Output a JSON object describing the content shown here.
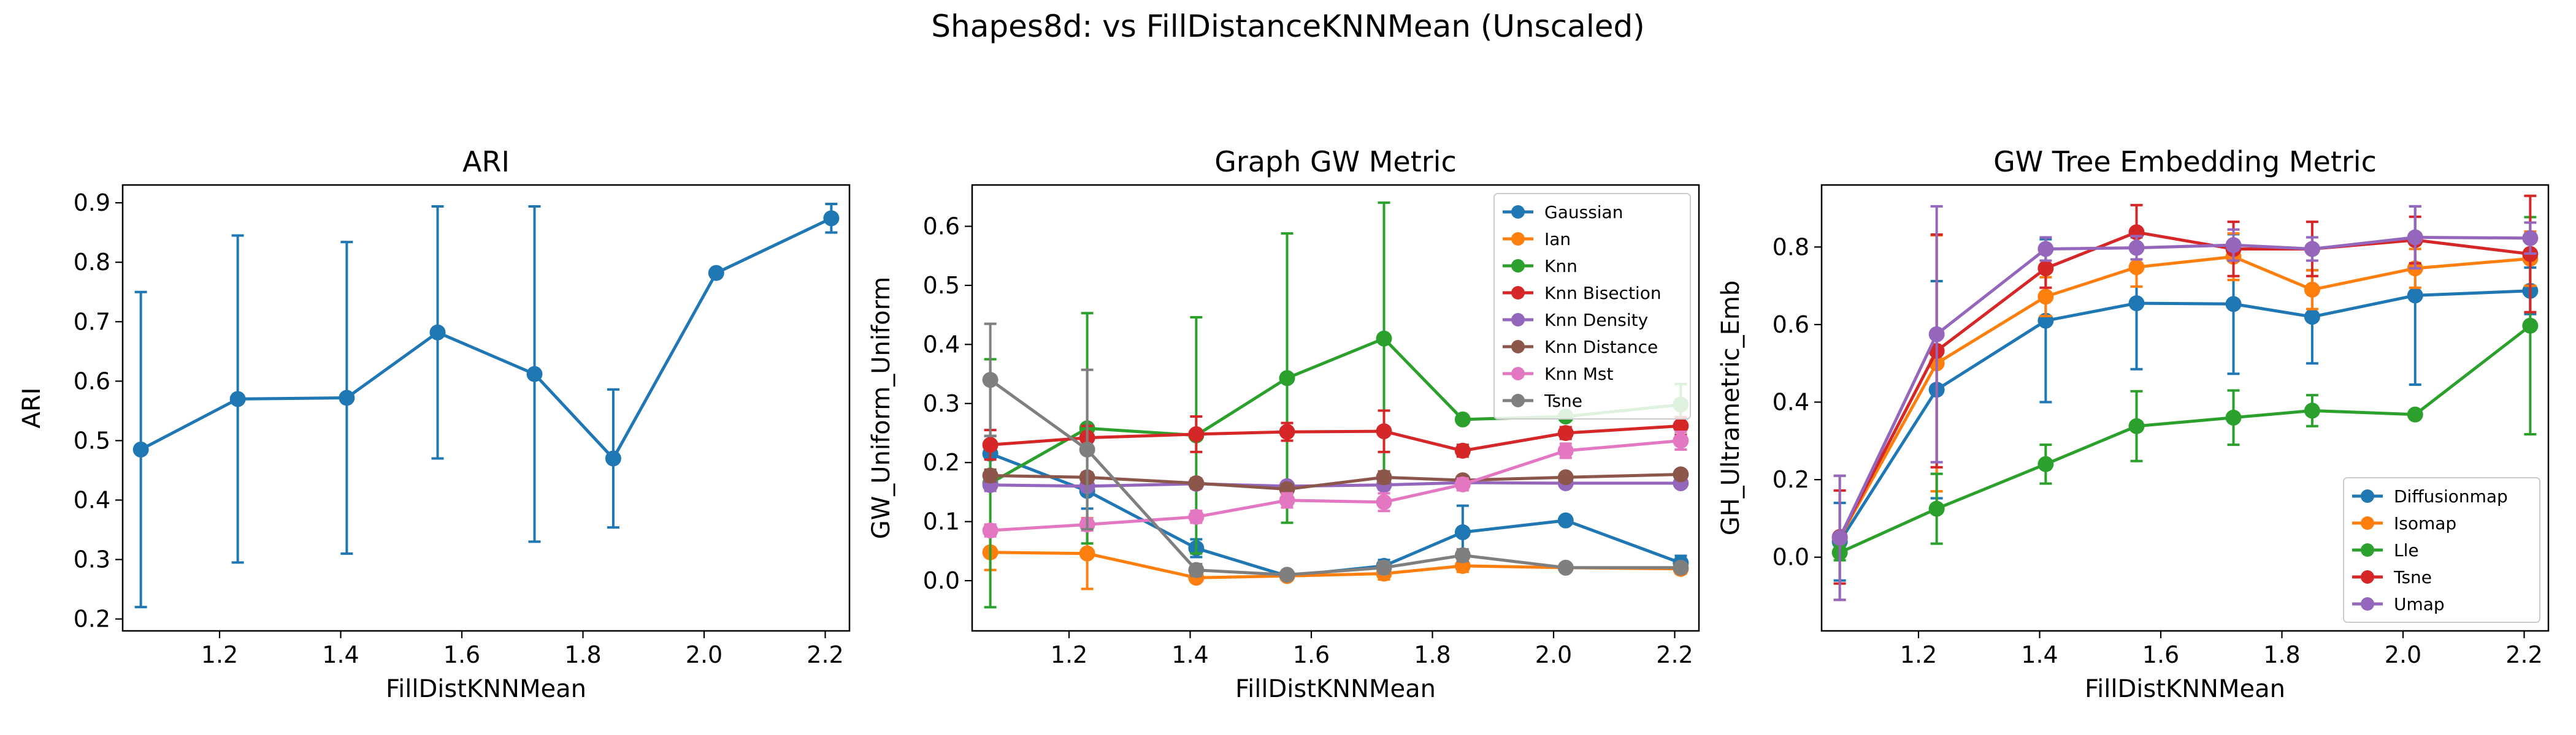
{
  "figure": {
    "title": "Shapes8d: vs FillDistanceKNNMean (Unscaled)"
  },
  "chart_data": [
    {
      "type": "line",
      "title": "ARI",
      "xlabel": "FillDistKNNMean",
      "ylabel": "ARI",
      "xlim": [
        1.04,
        2.24
      ],
      "ylim": [
        0.18,
        0.93
      ],
      "xticks": [
        "1.2",
        "1.4",
        "1.6",
        "1.8",
        "2.0",
        "2.2"
      ],
      "yticks": [
        "0.2",
        "0.3",
        "0.4",
        "0.5",
        "0.6",
        "0.7",
        "0.8",
        "0.9"
      ],
      "legend": null,
      "x": [
        1.07,
        1.23,
        1.41,
        1.56,
        1.72,
        1.85,
        2.02,
        2.21
      ],
      "series": [
        {
          "name": "",
          "color": "#1f77b4",
          "values": [
            0.485,
            0.57,
            0.572,
            0.682,
            0.612,
            0.47,
            0.782,
            0.874
          ],
          "err": [
            0.265,
            0.275,
            0.262,
            0.212,
            0.282,
            0.116,
            0.0,
            0.024
          ]
        }
      ]
    },
    {
      "type": "line",
      "title": "Graph GW Metric",
      "xlabel": "FillDistKNNMean",
      "ylabel": "GW_Uniform_Uniform",
      "xlim": [
        1.04,
        2.24
      ],
      "ylim": [
        -0.085,
        0.67
      ],
      "xticks": [
        "1.2",
        "1.4",
        "1.6",
        "1.8",
        "2.0",
        "2.2"
      ],
      "yticks": [
        "0.0",
        "0.1",
        "0.2",
        "0.3",
        "0.4",
        "0.5",
        "0.6"
      ],
      "legend": "top-right",
      "x": [
        1.07,
        1.23,
        1.41,
        1.56,
        1.72,
        1.85,
        2.02,
        2.21
      ],
      "series": [
        {
          "name": "Gaussian",
          "color": "#1f77b4",
          "values": [
            0.215,
            0.152,
            0.055,
            0.008,
            0.025,
            0.082,
            0.102,
            0.03
          ],
          "err": [
            0.03,
            0.03,
            0.015,
            0.005,
            0.01,
            0.045,
            0.0,
            0.012
          ]
        },
        {
          "name": "Ian",
          "color": "#ff7f0e",
          "values": [
            0.048,
            0.046,
            0.005,
            0.008,
            0.012,
            0.025,
            0.022,
            0.02
          ],
          "err": [
            0.03,
            0.06,
            0.005,
            0.004,
            0.01,
            0.01,
            0.0,
            0.008
          ]
        },
        {
          "name": "Knn",
          "color": "#2ca02c",
          "values": [
            0.165,
            0.258,
            0.246,
            0.343,
            0.41,
            0.273,
            0.278,
            0.298
          ],
          "err": [
            0.21,
            0.195,
            0.2,
            0.245,
            0.23,
            0.0,
            0.0,
            0.035
          ]
        },
        {
          "name": "Knn Bisection",
          "color": "#d62728",
          "values": [
            0.23,
            0.242,
            0.248,
            0.252,
            0.253,
            0.22,
            0.25,
            0.262
          ],
          "err": [
            0.025,
            0.02,
            0.03,
            0.015,
            0.035,
            0.01,
            0.01,
            0.015
          ]
        },
        {
          "name": "Knn Density",
          "color": "#9467bd",
          "values": [
            0.162,
            0.16,
            0.164,
            0.16,
            0.162,
            0.166,
            0.165,
            0.165
          ],
          "err": [
            0.01,
            0.008,
            0.008,
            0.006,
            0.008,
            0.006,
            0.006,
            0.006
          ]
        },
        {
          "name": "Knn Distance",
          "color": "#8c564b",
          "values": [
            0.178,
            0.175,
            0.165,
            0.155,
            0.175,
            0.17,
            0.175,
            0.18
          ],
          "err": [
            0.01,
            0.008,
            0.008,
            0.008,
            0.01,
            0.006,
            0.005,
            0.005
          ]
        },
        {
          "name": "Knn Mst",
          "color": "#e377c2",
          "values": [
            0.085,
            0.095,
            0.108,
            0.136,
            0.133,
            0.163,
            0.22,
            0.237
          ],
          "err": [
            0.01,
            0.01,
            0.01,
            0.012,
            0.015,
            0.01,
            0.012,
            0.015
          ]
        },
        {
          "name": "Tsne",
          "color": "#7f7f7f",
          "values": [
            0.34,
            0.222,
            0.018,
            0.01,
            0.022,
            0.043,
            0.022,
            0.022
          ],
          "err": [
            0.095,
            0.135,
            0.01,
            0.005,
            0.01,
            0.01,
            0.005,
            0.005
          ]
        }
      ]
    },
    {
      "type": "line",
      "title": "GW Tree Embedding Metric",
      "xlabel": "FillDistKNNMean",
      "ylabel": "GH_Ultrametric_Emb",
      "xlim": [
        1.04,
        2.24
      ],
      "ylim": [
        -0.19,
        0.96
      ],
      "xticks": [
        "1.2",
        "1.4",
        "1.6",
        "1.8",
        "2.0",
        "2.2"
      ],
      "yticks": [
        "0.0",
        "0.2",
        "0.4",
        "0.6",
        "0.8"
      ],
      "legend": "bottom-right",
      "x": [
        1.07,
        1.23,
        1.41,
        1.56,
        1.72,
        1.85,
        2.02,
        2.21
      ],
      "series": [
        {
          "name": "Diffusionmap",
          "color": "#1f77b4",
          "values": [
            0.04,
            0.432,
            0.61,
            0.655,
            0.653,
            0.62,
            0.675,
            0.687
          ],
          "err": [
            0.1,
            0.28,
            0.21,
            0.17,
            0.18,
            0.12,
            0.23,
            0.06
          ]
        },
        {
          "name": "Isomap",
          "color": "#ff7f0e",
          "values": [
            0.05,
            0.5,
            0.672,
            0.748,
            0.775,
            0.69,
            0.745,
            0.77
          ],
          "err": [
            0.16,
            0.33,
            0.05,
            0.05,
            0.06,
            0.05,
            0.05,
            0.07
          ]
        },
        {
          "name": "Lle",
          "color": "#2ca02c",
          "values": [
            0.012,
            0.125,
            0.24,
            0.338,
            0.36,
            0.378,
            0.368,
            0.597
          ],
          "err": [
            0.02,
            0.09,
            0.05,
            0.09,
            0.07,
            0.04,
            0.0,
            0.28
          ]
        },
        {
          "name": "Tsne",
          "color": "#d62728",
          "values": [
            0.052,
            0.532,
            0.745,
            0.838,
            0.795,
            0.795,
            0.818,
            0.782
          ],
          "err": [
            0.12,
            0.3,
            0.05,
            0.07,
            0.07,
            0.07,
            0.06,
            0.15
          ]
        },
        {
          "name": "Umap",
          "color": "#9467bd",
          "values": [
            0.05,
            0.575,
            0.795,
            0.798,
            0.805,
            0.795,
            0.825,
            0.823
          ],
          "err": [
            0.16,
            0.33,
            0.03,
            0.03,
            0.04,
            0.03,
            0.08,
            0.04
          ]
        }
      ]
    }
  ]
}
